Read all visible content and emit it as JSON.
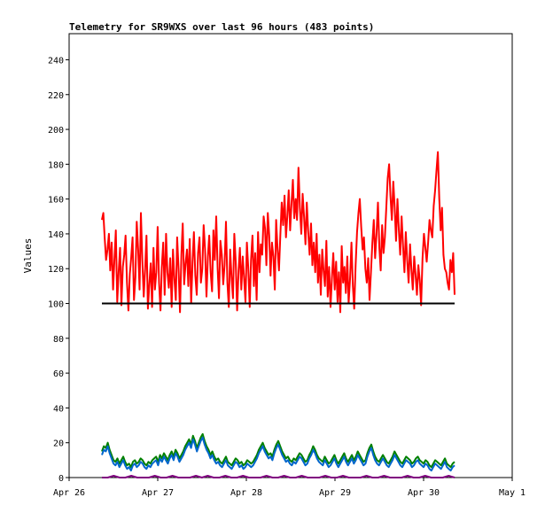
{
  "chart_data": {
    "type": "line",
    "title": "Telemetry for SR9WXS over last 96 hours (483 points)",
    "xlabel": "",
    "ylabel": "Values",
    "ylim": [
      0,
      255
    ],
    "yticks": [
      0,
      20,
      40,
      60,
      80,
      100,
      120,
      140,
      160,
      180,
      200,
      220,
      240
    ],
    "xlim": [
      "Apr 26",
      "May 1"
    ],
    "xticks": [
      "Apr 26",
      "Apr 27",
      "Apr 28",
      "Apr 29",
      "Apr 30",
      "May 1"
    ],
    "grid": false,
    "legend": "none",
    "series": [
      {
        "color": "#ff0000",
        "x_start_days": 0.37,
        "x_end_days": 4.35,
        "values": [
          148,
          152,
          138,
          125,
          131,
          140,
          119,
          135,
          108,
          126,
          142,
          101,
          118,
          132,
          99,
          121,
          128,
          139,
          112,
          96,
          117,
          126,
          138,
          102,
          115,
          147,
          131,
          108,
          152,
          125,
          104,
          120,
          139,
          97,
          111,
          123,
          98,
          132,
          108,
          118,
          144,
          112,
          96,
          121,
          135,
          105,
          140,
          118,
          109,
          126,
          98,
          131,
          114,
          102,
          138,
          120,
          95,
          128,
          146,
          111,
          123,
          131,
          110,
          137,
          100,
          124,
          141,
          116,
          105,
          129,
          138,
          112,
          120,
          145,
          131,
          104,
          127,
          139,
          118,
          107,
          142,
          125,
          150,
          120,
          103,
          136,
          128,
          111,
          122,
          147,
          112,
          98,
          131,
          115,
          103,
          140,
          124,
          96,
          119,
          132,
          108,
          127,
          114,
          101,
          135,
          120,
          98,
          125,
          139,
          110,
          129,
          102,
          141,
          118,
          134,
          128,
          150,
          143,
          122,
          152,
          139,
          116,
          135,
          127,
          108,
          148,
          131,
          119,
          140,
          158,
          145,
          162,
          138,
          150,
          165,
          142,
          157,
          171,
          149,
          160,
          148,
          178,
          155,
          140,
          163,
          150,
          134,
          158,
          141,
          128,
          146,
          122,
          135,
          118,
          140,
          112,
          128,
          105,
          131,
          119,
          110,
          136,
          104,
          121,
          98,
          115,
          129,
          108,
          124,
          101,
          118,
          95,
          133,
          112,
          121,
          106,
          127,
          100,
          114,
          135,
          110,
          97,
          122,
          141,
          152,
          160,
          144,
          131,
          138,
          120,
          112,
          126,
          102,
          118,
          135,
          148,
          126,
          140,
          158,
          132,
          119,
          145,
          129,
          138,
          155,
          172,
          180,
          162,
          148,
          170,
          155,
          136,
          160,
          142,
          128,
          150,
          133,
          118,
          141,
          125,
          112,
          134,
          120,
          108,
          127,
          116,
          105,
          122,
          113,
          99,
          126,
          140,
          132,
          124,
          135,
          148,
          142,
          138,
          156,
          165,
          176,
          187,
          160,
          142,
          155,
          128,
          120,
          118,
          112,
          108,
          125,
          118,
          129,
          105
        ]
      },
      {
        "color": "#008000",
        "x_start_days": 0.37,
        "x_end_days": 4.35,
        "values": [
          15,
          18,
          17,
          20,
          16,
          13,
          10,
          9,
          11,
          8,
          10,
          12,
          9,
          7,
          8,
          6,
          9,
          10,
          8,
          9,
          11,
          10,
          8,
          7,
          9,
          8,
          10,
          11,
          12,
          9,
          13,
          11,
          14,
          12,
          10,
          13,
          15,
          12,
          16,
          14,
          11,
          13,
          15,
          18,
          20,
          22,
          19,
          24,
          21,
          17,
          20,
          23,
          25,
          21,
          18,
          16,
          13,
          15,
          12,
          10,
          11,
          9,
          8,
          10,
          12,
          9,
          8,
          7,
          9,
          11,
          10,
          8,
          9,
          7,
          8,
          10,
          9,
          8,
          9,
          11,
          13,
          16,
          18,
          20,
          17,
          15,
          13,
          14,
          12,
          16,
          19,
          21,
          18,
          15,
          13,
          11,
          12,
          10,
          9,
          11,
          10,
          12,
          14,
          13,
          11,
          9,
          10,
          13,
          15,
          18,
          16,
          13,
          11,
          10,
          9,
          12,
          10,
          8,
          9,
          11,
          13,
          10,
          8,
          10,
          12,
          14,
          11,
          9,
          11,
          13,
          10,
          12,
          15,
          13,
          11,
          9,
          10,
          14,
          17,
          19,
          15,
          12,
          10,
          9,
          11,
          13,
          11,
          9,
          8,
          10,
          12,
          15,
          13,
          11,
          9,
          8,
          10,
          12,
          11,
          10,
          8,
          9,
          11,
          12,
          10,
          9,
          8,
          10,
          9,
          7,
          6,
          8,
          10,
          9,
          8,
          7,
          9,
          11,
          8,
          7,
          6,
          8,
          9
        ]
      },
      {
        "color": "#0066cc",
        "x_start_days": 0.37,
        "x_end_days": 4.35,
        "values": [
          13,
          16,
          15,
          18,
          14,
          11,
          8,
          7,
          9,
          6,
          8,
          10,
          7,
          5,
          6,
          4,
          7,
          8,
          6,
          7,
          9,
          8,
          6,
          5,
          7,
          6,
          8,
          9,
          10,
          7,
          11,
          9,
          12,
          10,
          8,
          11,
          13,
          10,
          14,
          12,
          9,
          11,
          13,
          16,
          18,
          20,
          17,
          22,
          19,
          15,
          18,
          21,
          23,
          19,
          16,
          14,
          11,
          13,
          10,
          8,
          9,
          7,
          6,
          8,
          10,
          7,
          6,
          5,
          7,
          9,
          8,
          6,
          7,
          5,
          6,
          8,
          7,
          6,
          7,
          9,
          11,
          14,
          16,
          18,
          15,
          13,
          11,
          12,
          10,
          14,
          17,
          19,
          16,
          13,
          11,
          9,
          10,
          8,
          7,
          9,
          8,
          10,
          12,
          11,
          9,
          7,
          8,
          11,
          13,
          16,
          14,
          11,
          9,
          8,
          7,
          10,
          8,
          6,
          7,
          9,
          11,
          8,
          6,
          8,
          10,
          12,
          9,
          7,
          9,
          11,
          8,
          10,
          13,
          11,
          9,
          7,
          8,
          12,
          15,
          17,
          13,
          10,
          8,
          7,
          9,
          11,
          9,
          7,
          6,
          8,
          10,
          13,
          11,
          9,
          7,
          6,
          8,
          10,
          9,
          8,
          6,
          7,
          9,
          10,
          8,
          7,
          6,
          8,
          7,
          5,
          4,
          6,
          8,
          7,
          6,
          5,
          7,
          9,
          6,
          5,
          4,
          6,
          7
        ]
      },
      {
        "color": "#800080",
        "x_start_days": 0.37,
        "x_end_days": 4.35,
        "values": [
          0,
          0,
          1,
          0,
          0,
          1,
          0,
          0,
          0,
          1,
          0,
          0,
          1,
          0,
          0,
          0,
          1,
          0,
          1,
          0,
          0,
          1,
          0,
          0,
          1,
          0,
          0,
          0,
          1,
          0,
          0,
          1,
          0,
          0,
          1,
          0,
          0,
          0,
          1,
          0,
          0,
          1,
          0,
          0,
          0,
          1,
          0,
          0,
          1,
          0,
          0,
          0,
          1,
          0,
          0,
          1,
          0,
          0,
          0,
          1,
          0
        ]
      },
      {
        "color": "#000000",
        "x_start_days": 0.37,
        "x_end_days": 4.35,
        "values": [
          100,
          100
        ]
      }
    ]
  }
}
